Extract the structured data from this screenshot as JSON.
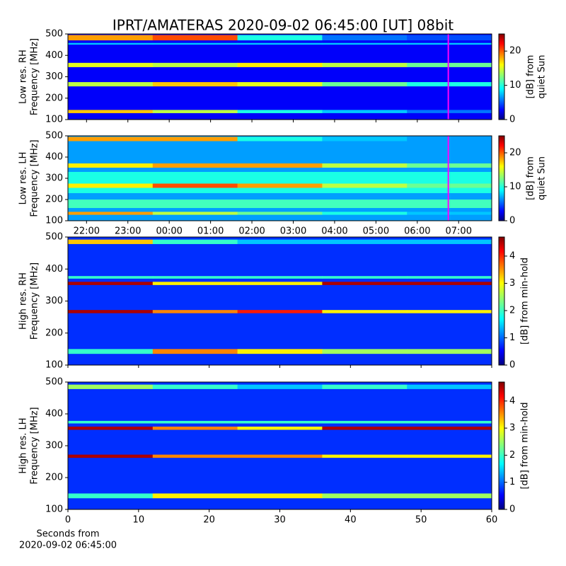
{
  "chart_data": [
    {
      "type": "heatmap",
      "title": "IPRT/AMATERAS 2020-09-02 06:45:00 [UT]   08bit",
      "ylabel": [
        "Low res. RH",
        "Frequency [MHz]"
      ],
      "xlim": [
        21.55,
        31.8
      ],
      "ylim": [
        100,
        500
      ],
      "yticks": [
        100,
        200,
        300,
        400,
        500
      ],
      "background": 3,
      "bands": [
        {
          "range": [
            470,
            495
          ],
          "values": [
            18,
            20,
            10,
            6,
            5
          ]
        },
        {
          "range": [
            450,
            458
          ],
          "values": [
            8,
            8,
            8,
            8,
            8
          ]
        },
        {
          "range": [
            345,
            365
          ],
          "values": [
            15,
            14,
            16,
            14,
            12
          ]
        },
        {
          "range": [
            255,
            275
          ],
          "values": [
            14,
            17,
            15,
            12,
            10
          ]
        },
        {
          "range": [
            130,
            145
          ],
          "values": [
            17,
            14,
            10,
            8,
            6
          ]
        }
      ],
      "marker_x": 30.75,
      "marker_color": "#ff00ff",
      "clim": [
        0,
        25
      ],
      "cticks": [
        0,
        10,
        20
      ],
      "clabel": [
        "[dB] from",
        "quiet Sun"
      ]
    },
    {
      "type": "heatmap",
      "ylabel": [
        "Low res. LH",
        "Frequency [MHz]"
      ],
      "xlim": [
        21.55,
        31.8
      ],
      "ylim": [
        100,
        500
      ],
      "yticks": [
        100,
        200,
        300,
        400,
        500
      ],
      "xticks": [
        {
          "value": 22,
          "label": "22:00"
        },
        {
          "value": 23,
          "label": "23:00"
        },
        {
          "value": 24,
          "label": "00:00"
        },
        {
          "value": 25,
          "label": "01:00"
        },
        {
          "value": 26,
          "label": "02:00"
        },
        {
          "value": 27,
          "label": "03:00"
        },
        {
          "value": 28,
          "label": "04:00"
        },
        {
          "value": 29,
          "label": "05:00"
        },
        {
          "value": 30,
          "label": "06:00"
        },
        {
          "value": 31,
          "label": "07:00"
        }
      ],
      "background": 7,
      "bands": [
        {
          "range": [
            475,
            495
          ],
          "values": [
            18,
            18,
            10,
            8,
            7
          ]
        },
        {
          "range": [
            350,
            370
          ],
          "values": [
            16,
            18,
            18,
            14,
            12
          ]
        },
        {
          "range": [
            230,
            330
          ],
          "values": [
            10,
            10,
            10,
            10,
            10
          ]
        },
        {
          "range": [
            255,
            275
          ],
          "values": [
            16,
            20,
            18,
            14,
            12
          ]
        },
        {
          "range": [
            160,
            200
          ],
          "values": [
            11,
            11,
            11,
            11,
            11
          ]
        },
        {
          "range": [
            128,
            142
          ],
          "values": [
            18,
            14,
            12,
            10,
            8
          ]
        }
      ],
      "marker_x": 30.75,
      "marker_color": "#ff00ff",
      "clim": [
        0,
        25
      ],
      "cticks": [
        0,
        10,
        20
      ],
      "clabel": [
        "[dB] from",
        "quiet Sun"
      ]
    },
    {
      "type": "heatmap",
      "ylabel": [
        "High res. RH",
        "Frequency [MHz]"
      ],
      "xlim": [
        0,
        60
      ],
      "ylim": [
        100,
        500
      ],
      "yticks": [
        100,
        200,
        300,
        400,
        500
      ],
      "background": 0.8,
      "bands": [
        {
          "range": [
            478,
            492
          ],
          "values": [
            3.2,
            2.0,
            1.5,
            1.5,
            1.5
          ]
        },
        {
          "range": [
            370,
            378
          ],
          "values": [
            2.0,
            2.0,
            2.0,
            2.0,
            2.0
          ]
        },
        {
          "range": [
            350,
            360
          ],
          "values": [
            4.5,
            3.0,
            3.0,
            4.5,
            4.5
          ]
        },
        {
          "range": [
            262,
            272
          ],
          "values": [
            4.5,
            3.5,
            4.0,
            3.0,
            3.0
          ]
        },
        {
          "range": [
            135,
            150
          ],
          "values": [
            2.0,
            3.5,
            3.0,
            2.5,
            2.5
          ]
        }
      ],
      "clim": [
        0,
        4.7
      ],
      "cticks": [
        0,
        1,
        2,
        3,
        4
      ],
      "clabel": [
        "[dB] from min-hold"
      ]
    },
    {
      "type": "heatmap",
      "ylabel": [
        "High res. LH",
        "Frequency [MHz]"
      ],
      "xlim": [
        0,
        60
      ],
      "ylim": [
        100,
        500
      ],
      "yticks": [
        100,
        200,
        300,
        400,
        500
      ],
      "xticks": [
        0,
        10,
        20,
        30,
        40,
        50,
        60
      ],
      "xlabel": [
        "Seconds from",
        "2020-09-02 06:45:00"
      ],
      "background": 0.8,
      "bands": [
        {
          "range": [
            478,
            492
          ],
          "values": [
            2.5,
            2.0,
            1.5,
            2.0,
            1.5
          ]
        },
        {
          "range": [
            370,
            378
          ],
          "values": [
            2.0,
            2.0,
            2.0,
            2.0,
            2.0
          ]
        },
        {
          "range": [
            350,
            360
          ],
          "values": [
            4.5,
            3.5,
            3.0,
            4.5,
            4.5
          ]
        },
        {
          "range": [
            262,
            272
          ],
          "values": [
            4.5,
            3.5,
            3.5,
            3.0,
            3.0
          ]
        },
        {
          "range": [
            135,
            150
          ],
          "values": [
            2.0,
            3.0,
            3.0,
            2.5,
            2.5
          ]
        }
      ],
      "clim": [
        0,
        4.7
      ],
      "cticks": [
        0,
        1,
        2,
        3,
        4
      ],
      "clabel": [
        "[dB] from min-hold"
      ]
    }
  ]
}
